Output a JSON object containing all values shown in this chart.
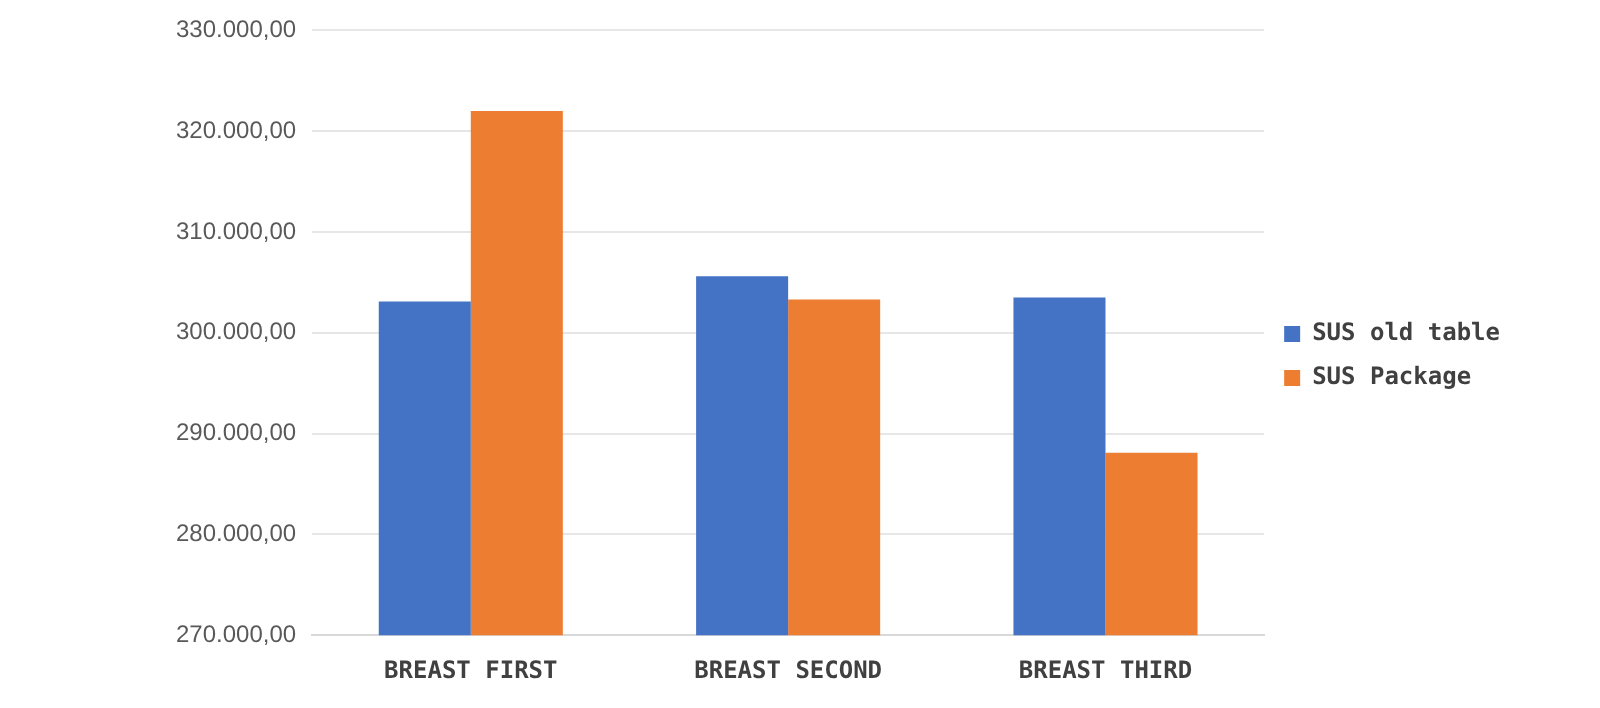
{
  "chart_data": {
    "type": "bar",
    "categories": [
      "BREAST FIRST",
      "BREAST SECOND",
      "BREAST THIRD"
    ],
    "series": [
      {
        "name": "SUS old table",
        "color": "#4472c4",
        "values": [
          303100,
          305600,
          303500
        ]
      },
      {
        "name": "SUS Package",
        "color": "#ed7d31",
        "values": [
          322000,
          303300,
          288100
        ]
      }
    ],
    "ylim": [
      270000,
      330000
    ],
    "yticks": [
      {
        "value": 270000,
        "label": "270.000,00"
      },
      {
        "value": 280000,
        "label": "280.000,00"
      },
      {
        "value": 290000,
        "label": "290.000,00"
      },
      {
        "value": 300000,
        "label": "300.000,00"
      },
      {
        "value": 310000,
        "label": "310.000,00"
      },
      {
        "value": 320000,
        "label": "320.000,00"
      },
      {
        "value": 330000,
        "label": "330.000,00"
      }
    ],
    "grid": "y",
    "legend": "right"
  }
}
